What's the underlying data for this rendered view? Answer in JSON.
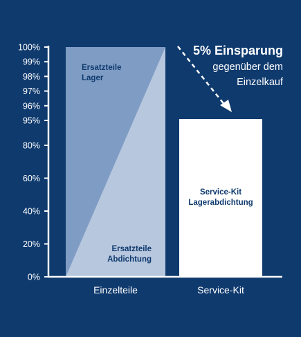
{
  "colors": {
    "background": "#0f3a6e",
    "axis": "#ffffff",
    "bar_light": "#b7c7de",
    "bar_dark": "#7f9cc4",
    "bar_white": "#ffffff",
    "inner_text": "#0f3a6e"
  },
  "callout": {
    "headline": "5% Einsparung",
    "line2": "gegenüber dem",
    "line3": "Einzelkauf"
  },
  "chart_data": {
    "type": "bar",
    "title": "",
    "xlabel": "",
    "ylabel": "",
    "ylim": [
      0,
      100
    ],
    "scale": "broken-linear",
    "y_ticks": [
      "0%",
      "20%",
      "40%",
      "60%",
      "80%",
      "95%",
      "96%",
      "97%",
      "98%",
      "99%",
      "100%"
    ],
    "y_tick_values": [
      0,
      20,
      40,
      60,
      80,
      95,
      96,
      97,
      98,
      99,
      100
    ],
    "categories": [
      "Einzelteile",
      "Service-Kit"
    ],
    "values": [
      100,
      95
    ],
    "bar_segments": [
      {
        "category": "Einzelteile",
        "parts": [
          {
            "label_line1": "Ersatzteile",
            "label_line2": "Lager"
          },
          {
            "label_line1": "Ersatzteile",
            "label_line2": "Abdichtung"
          }
        ]
      },
      {
        "category": "Service-Kit",
        "parts": [
          {
            "label_line1": "Service-Kit",
            "label_line2": "Lagerabdichtung"
          }
        ]
      }
    ],
    "grid": false
  }
}
